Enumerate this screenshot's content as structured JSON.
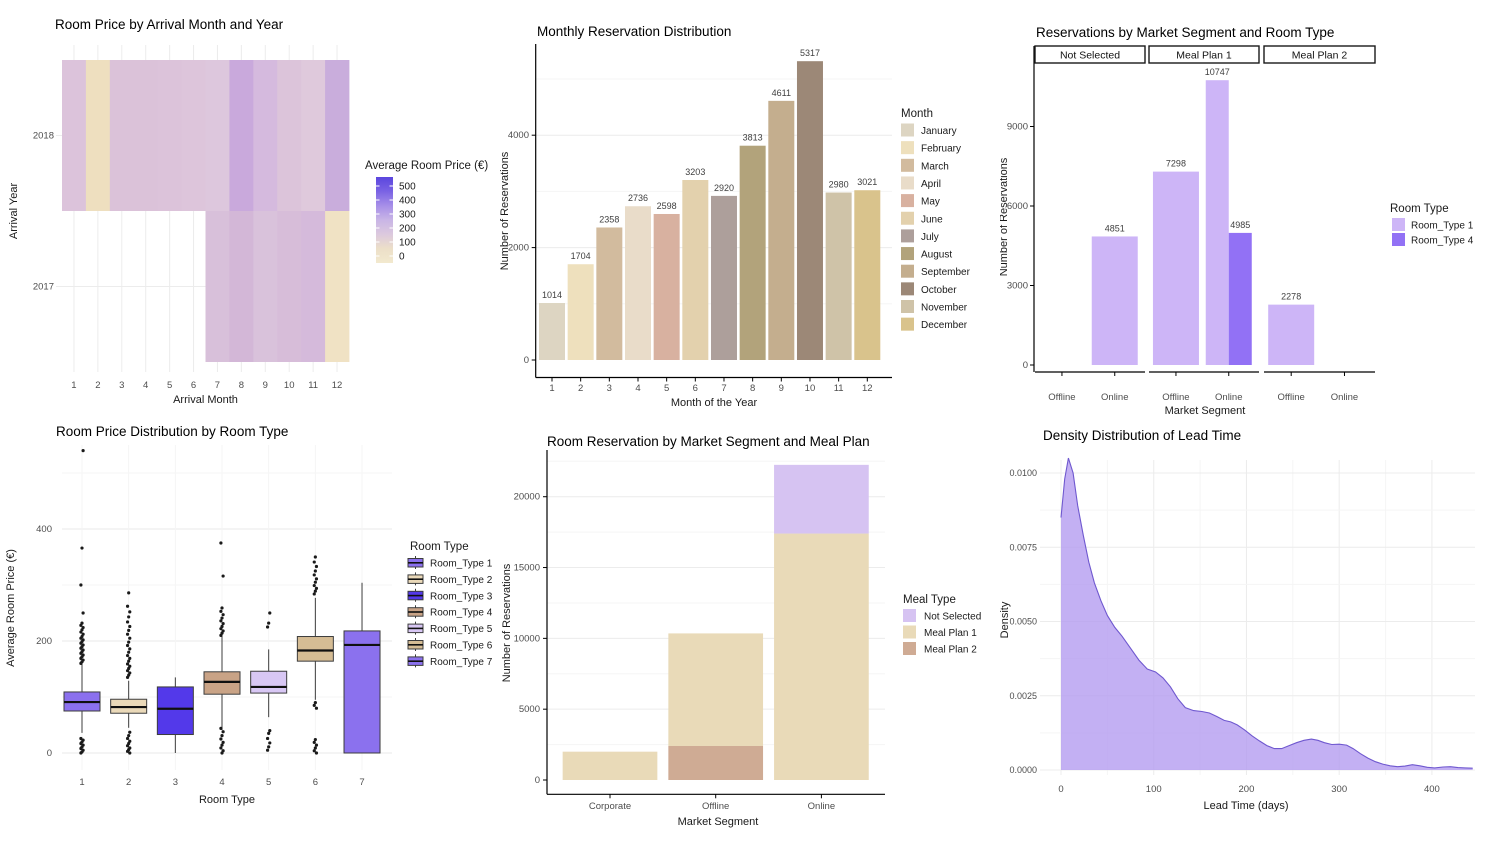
{
  "page": {
    "background": "#ffffff"
  },
  "chart_data": [
    {
      "type": "heatmap",
      "title": "Room Price by Arrival Month and Year",
      "xlabel": "Arrival Month",
      "ylabel": "Arrival Year",
      "x_ticks": [
        "1",
        "2",
        "3",
        "4",
        "5",
        "6",
        "7",
        "8",
        "9",
        "10",
        "11",
        "12"
      ],
      "y_ticks": [
        "2018",
        "2017"
      ],
      "rows": [
        {
          "year": "2018",
          "cells": [
            {
              "month": 1,
              "color": "#dcc3db",
              "value_est": 120
            },
            {
              "month": 2,
              "color": "#eedfbf",
              "value_est": 45
            },
            {
              "month": 3,
              "color": "#dbc2d9",
              "value_est": 125
            },
            {
              "month": 4,
              "color": "#dbc2d9",
              "value_est": 125
            },
            {
              "month": 5,
              "color": "#dcc3da",
              "value_est": 122
            },
            {
              "month": 6,
              "color": "#ddc5db",
              "value_est": 120
            },
            {
              "month": 7,
              "color": "#ddc7dd",
              "value_est": 118
            },
            {
              "month": 8,
              "color": "#c9a9dc",
              "value_est": 175
            },
            {
              "month": 9,
              "color": "#d5bade",
              "value_est": 140
            },
            {
              "month": 10,
              "color": "#dcc4da",
              "value_est": 122
            },
            {
              "month": 11,
              "color": "#dfc9dc",
              "value_est": 115
            },
            {
              "month": 12,
              "color": "#c9addc",
              "value_est": 170
            }
          ]
        },
        {
          "year": "2017",
          "cells": [
            {
              "month": 7,
              "color": "#d8c0da",
              "value_est": 130
            },
            {
              "month": 8,
              "color": "#d3b7d7",
              "value_est": 145
            },
            {
              "month": 9,
              "color": "#d9c2db",
              "value_est": 128
            },
            {
              "month": 10,
              "color": "#d7bdd9",
              "value_est": 135
            },
            {
              "month": 11,
              "color": "#d5badb",
              "value_est": 140
            },
            {
              "month": 12,
              "color": "#f0e2c4",
              "value_est": 40
            }
          ]
        }
      ],
      "legend": {
        "title": "Average Room Price (€)",
        "ticks": [
          "500",
          "400",
          "300",
          "200",
          "100",
          "0"
        ],
        "gradient": [
          "#5b46de",
          "#7a63e4",
          "#a78fe8",
          "#c9b5e6",
          "#dcc9de",
          "#ecdfc8",
          "#f2e9ce"
        ]
      }
    },
    {
      "type": "bar",
      "title": "Monthly Reservation Distribution",
      "xlabel": "Month of the Year",
      "ylabel": "Number of Reservations",
      "categories": [
        "1",
        "2",
        "3",
        "4",
        "5",
        "6",
        "7",
        "8",
        "9",
        "10",
        "11",
        "12"
      ],
      "values": [
        1014,
        1704,
        2358,
        2736,
        2598,
        3203,
        2920,
        3813,
        4611,
        5317,
        2980,
        3021
      ],
      "bar_colors": [
        "#ddd5c2",
        "#eee0bd",
        "#d2bb9e",
        "#e9dcc9",
        "#d8b1a0",
        "#e3d1ad",
        "#ad9f9b",
        "#b2a37b",
        "#c4ae8e",
        "#9c8877",
        "#cfc3a8",
        "#d9c38c"
      ],
      "y_ticks": [
        0,
        2000,
        4000
      ],
      "ylim": [
        0,
        5600
      ],
      "legend": {
        "title": "Month",
        "entries": [
          {
            "label": "January",
            "color": "#ddd5c2"
          },
          {
            "label": "February",
            "color": "#eee0bd"
          },
          {
            "label": "March",
            "color": "#d2bb9e"
          },
          {
            "label": "April",
            "color": "#e9dcc9"
          },
          {
            "label": "May",
            "color": "#d8b1a0"
          },
          {
            "label": "June",
            "color": "#e3d1ad"
          },
          {
            "label": "July",
            "color": "#ad9f9b"
          },
          {
            "label": "August",
            "color": "#b2a37b"
          },
          {
            "label": "September",
            "color": "#c4ae8e"
          },
          {
            "label": "October",
            "color": "#9c8877"
          },
          {
            "label": "November",
            "color": "#cfc3a8"
          },
          {
            "label": "December",
            "color": "#d9c38c"
          }
        ]
      }
    },
    {
      "type": "grouped-bar-facets",
      "title": "Reservations by Market Segment and Room Type",
      "xlabel": "Market Segment",
      "ylabel": "Number of Reservations",
      "y_ticks": [
        0,
        3000,
        6000,
        9000
      ],
      "ylim": [
        0,
        11400
      ],
      "facets": [
        {
          "label": "Not Selected",
          "bars": [
            {
              "segment": "Offline",
              "values": []
            },
            {
              "segment": "Online",
              "values": [
                {
                  "series": "Room_Type 1",
                  "value": 4851
                }
              ]
            }
          ]
        },
        {
          "label": "Meal Plan 1",
          "bars": [
            {
              "segment": "Offline",
              "values": [
                {
                  "series": "Room_Type 1",
                  "value": 7298
                }
              ]
            },
            {
              "segment": "Online",
              "values": [
                {
                  "series": "Room_Type 1",
                  "value": 10747
                },
                {
                  "series": "Room_Type 4",
                  "value": 4985
                }
              ]
            }
          ]
        },
        {
          "label": "Meal Plan 2",
          "bars": [
            {
              "segment": "Offline",
              "values": [
                {
                  "series": "Room_Type 1",
                  "value": 2278
                }
              ]
            },
            {
              "segment": "Online",
              "values": []
            }
          ]
        }
      ],
      "legend": {
        "title": "Room Type",
        "entries": [
          {
            "label": "Room_Type 1",
            "color": "#cdb5f7"
          },
          {
            "label": "Room_Type 4",
            "color": "#9271f5"
          }
        ]
      }
    },
    {
      "type": "boxplot",
      "title": "Room Price Distribution by Room Type",
      "xlabel": "Room Type",
      "ylabel": "Average Room Price (€)",
      "y_ticks": [
        0,
        200,
        400
      ],
      "categories": [
        "1",
        "2",
        "3",
        "4",
        "5",
        "6",
        "7"
      ],
      "boxes": [
        {
          "name": "Room_Type 1",
          "color": "#8b70ee",
          "q1": 75,
          "median": 91,
          "q3": 109,
          "whisker_low": 36,
          "whisker_high": 166,
          "outliers_high": [
            160,
            163,
            166,
            169,
            172,
            175,
            178,
            181,
            184,
            187,
            190,
            193,
            196,
            199,
            202,
            205,
            208,
            212,
            216,
            220,
            224,
            228,
            232,
            250,
            300,
            366,
            540
          ],
          "outliers_low": [
            0,
            2,
            5,
            8,
            11,
            14,
            17,
            20,
            23,
            26
          ]
        },
        {
          "name": "Room_Type 2",
          "color": "#ead9b9",
          "q1": 71,
          "median": 82,
          "q3": 96,
          "whisker_low": 45,
          "whisker_high": 129,
          "outliers_high": [
            135,
            139,
            143,
            147,
            151,
            155,
            159,
            164,
            169,
            174,
            180,
            186,
            192,
            198,
            205,
            212,
            219,
            226,
            234,
            243,
            252,
            262,
            286
          ],
          "outliers_low": [
            0,
            3,
            6,
            9,
            13,
            17,
            21,
            26,
            31,
            37
          ]
        },
        {
          "name": "Room_Type 3",
          "color": "#5339ea",
          "q1": 33,
          "median": 79,
          "q3": 118,
          "whisker_low": 0,
          "whisker_high": 135,
          "outliers_high": [],
          "outliers_low": []
        },
        {
          "name": "Room_Type 4",
          "color": "#c9a386",
          "q1": 105,
          "median": 127,
          "q3": 145,
          "whisker_low": 41,
          "whisker_high": 214,
          "outliers_high": [
            210,
            214,
            218,
            222,
            226,
            231,
            236,
            241,
            247,
            253,
            259,
            316,
            375
          ],
          "outliers_low": [
            0,
            4,
            9,
            14,
            19,
            25,
            31,
            38,
            44
          ]
        },
        {
          "name": "Room_Type 5",
          "color": "#d8c7f4",
          "q1": 107,
          "median": 118,
          "q3": 146,
          "whisker_low": 64,
          "whisker_high": 185,
          "outliers_high": [
            225,
            232,
            250
          ],
          "outliers_low": [
            5,
            11,
            18,
            26,
            35,
            40
          ]
        },
        {
          "name": "Room_Type 6",
          "color": "#d5bc94",
          "q1": 164,
          "median": 183,
          "q3": 208,
          "whisker_low": 95,
          "whisker_high": 277,
          "outliers_high": [
            284,
            289,
            294,
            299,
            305,
            311,
            318,
            325,
            333,
            341,
            350
          ],
          "outliers_low": [
            0,
            4,
            9,
            14,
            19,
            24,
            80,
            85,
            90
          ]
        },
        {
          "name": "Room_Type 7",
          "color": "#8b71ee",
          "q1": 0,
          "median": 193,
          "q3": 218,
          "whisker_low": 0,
          "whisker_high": 304,
          "outliers_high": [],
          "outliers_low": []
        }
      ],
      "legend": {
        "title": "Room Type",
        "entries": [
          {
            "label": "Room_Type 1",
            "color": "#8b70ee"
          },
          {
            "label": "Room_Type 2",
            "color": "#ead9b9"
          },
          {
            "label": "Room_Type 3",
            "color": "#5339ea"
          },
          {
            "label": "Room_Type 4",
            "color": "#c9a386"
          },
          {
            "label": "Room_Type 5",
            "color": "#d8c7f4"
          },
          {
            "label": "Room_Type 6",
            "color": "#d5bc94"
          },
          {
            "label": "Room_Type 7",
            "color": "#8b71ee"
          }
        ]
      }
    },
    {
      "type": "stacked-bar",
      "title": "Room Reservation by Market Segment and Meal Plan",
      "xlabel": "Market Segment",
      "ylabel": "Number of Reservations",
      "y_ticks": [
        0,
        5000,
        10000,
        15000,
        20000
      ],
      "ylim": [
        0,
        23000
      ],
      "categories": [
        "Corporate",
        "Offline",
        "Online"
      ],
      "series": [
        {
          "name": "Meal Plan 2",
          "color": "#cfab94",
          "values": [
            0,
            2400,
            0
          ]
        },
        {
          "name": "Meal Plan 1",
          "color": "#e9dab8",
          "values": [
            2000,
            7950,
            17400
          ]
        },
        {
          "name": "Not Selected",
          "color": "#d6c3f2",
          "values": [
            0,
            0,
            4850
          ]
        }
      ],
      "legend": {
        "title": "Meal Type",
        "entries": [
          {
            "label": "Not Selected",
            "color": "#d6c3f2"
          },
          {
            "label": "Meal Plan 1",
            "color": "#e9dab8"
          },
          {
            "label": "Meal Plan 2",
            "color": "#cfab94"
          }
        ]
      }
    },
    {
      "type": "area",
      "title": "Density Distribution of Lead Time",
      "xlabel": "Lead Time (days)",
      "ylabel": "Density",
      "x_ticks": [
        0,
        100,
        200,
        300,
        400
      ],
      "y_tick_labels": [
        "0.0000",
        "0.0025",
        "0.0050",
        "0.0075",
        "0.0100"
      ],
      "y_tick_values": [
        0,
        0.0025,
        0.005,
        0.0075,
        0.01
      ],
      "fill": "#b29af0",
      "stroke": "#6f58cf",
      "points": [
        [
          0,
          0.0085
        ],
        [
          4,
          0.0098
        ],
        [
          8,
          0.0105
        ],
        [
          13,
          0.01
        ],
        [
          18,
          0.0089
        ],
        [
          24,
          0.0079
        ],
        [
          30,
          0.007
        ],
        [
          36,
          0.0063
        ],
        [
          43,
          0.0057
        ],
        [
          50,
          0.0052
        ],
        [
          58,
          0.0048
        ],
        [
          66,
          0.0045
        ],
        [
          75,
          0.0041
        ],
        [
          84,
          0.0037
        ],
        [
          93,
          0.0034
        ],
        [
          102,
          0.0033
        ],
        [
          110,
          0.0031
        ],
        [
          118,
          0.0028
        ],
        [
          126,
          0.0024
        ],
        [
          134,
          0.0021
        ],
        [
          143,
          0.002
        ],
        [
          152,
          0.00197
        ],
        [
          160,
          0.00192
        ],
        [
          168,
          0.0018
        ],
        [
          176,
          0.00167
        ],
        [
          183,
          0.00162
        ],
        [
          190,
          0.00152
        ],
        [
          198,
          0.00135
        ],
        [
          206,
          0.00115
        ],
        [
          214,
          0.00098
        ],
        [
          222,
          0.00082
        ],
        [
          230,
          0.00072
        ],
        [
          238,
          0.00072
        ],
        [
          246,
          0.00082
        ],
        [
          254,
          0.00092
        ],
        [
          262,
          0.001
        ],
        [
          270,
          0.00104
        ],
        [
          277,
          0.001
        ],
        [
          284,
          0.00092
        ],
        [
          292,
          0.00086
        ],
        [
          300,
          0.00087
        ],
        [
          308,
          0.00084
        ],
        [
          315,
          0.00072
        ],
        [
          323,
          0.00055
        ],
        [
          331,
          0.0004
        ],
        [
          339,
          0.00028
        ],
        [
          347,
          0.0002
        ],
        [
          355,
          0.00014
        ],
        [
          363,
          0.00011
        ],
        [
          371,
          0.00013
        ],
        [
          379,
          0.00018
        ],
        [
          387,
          0.00014
        ],
        [
          395,
          9e-05
        ],
        [
          403,
          7e-05
        ],
        [
          412,
          0.0001
        ],
        [
          420,
          0.00011
        ],
        [
          428,
          8e-05
        ],
        [
          436,
          7e-05
        ],
        [
          444,
          6e-05
        ]
      ]
    }
  ]
}
